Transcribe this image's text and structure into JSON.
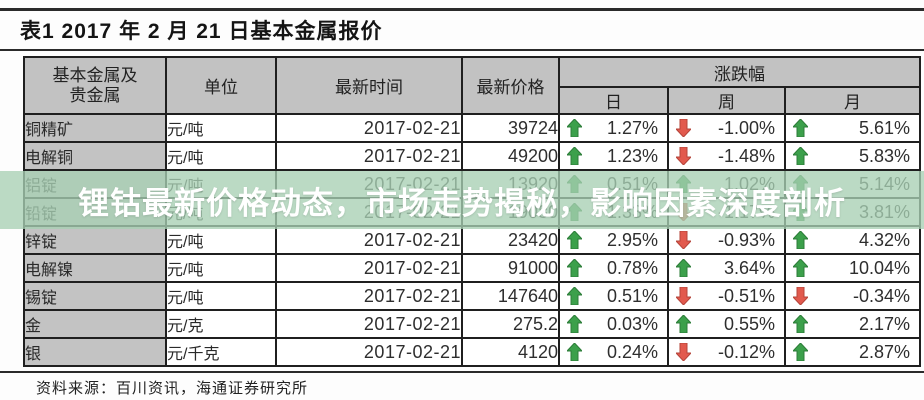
{
  "page": {
    "title": "表1  2017 年 2 月 21 日基本金属报价",
    "source_note": "资料来源：百川资讯，海通证券研究所",
    "overlay_text": "锂钴最新价格动态，市场走势揭秘，影响因素深度剖析"
  },
  "table": {
    "headers": {
      "metal_line1": "基本金属及",
      "metal_line2": "贵金属",
      "unit": "单位",
      "time": "最新时间",
      "price": "最新价格",
      "change_group": "涨跌幅",
      "day": "日",
      "week": "周",
      "month": "月"
    },
    "rows": [
      {
        "metal": "铜精矿",
        "unit": "元/吨",
        "time": "2017-02-21",
        "price": "39724",
        "day": {
          "dir": "up",
          "val": "1.27%"
        },
        "week": {
          "dir": "down",
          "val": "-1.00%"
        },
        "month": {
          "dir": "up",
          "val": "5.61%"
        }
      },
      {
        "metal": "电解铜",
        "unit": "元/吨",
        "time": "2017-02-21",
        "price": "49200",
        "day": {
          "dir": "up",
          "val": "1.23%"
        },
        "week": {
          "dir": "down",
          "val": "-1.48%"
        },
        "month": {
          "dir": "up",
          "val": "5.83%"
        }
      },
      {
        "metal": "铝锭",
        "unit": "元/吨",
        "time": "2017-02-21",
        "price": "13920",
        "day": {
          "dir": "up",
          "val": "0.51%"
        },
        "week": {
          "dir": "up",
          "val": "1.02%"
        },
        "month": {
          "dir": "up",
          "val": "5.14%"
        }
      },
      {
        "metal": "铅锭",
        "unit": "元/吨",
        "time": "2017-02-21",
        "price": "19080",
        "day": {
          "dir": "up",
          "val": "1.33%"
        },
        "week": {
          "dir": "down",
          "val": "-1.17%"
        },
        "month": {
          "dir": "up",
          "val": "3.81%"
        }
      },
      {
        "metal": "锌锭",
        "unit": "元/吨",
        "time": "2017-02-21",
        "price": "23420",
        "day": {
          "dir": "up",
          "val": "2.95%"
        },
        "week": {
          "dir": "down",
          "val": "-0.93%"
        },
        "month": {
          "dir": "up",
          "val": "4.32%"
        }
      },
      {
        "metal": "电解镍",
        "unit": "元/吨",
        "time": "2017-02-21",
        "price": "91000",
        "day": {
          "dir": "up",
          "val": "0.78%"
        },
        "week": {
          "dir": "up",
          "val": "3.64%"
        },
        "month": {
          "dir": "up",
          "val": "10.04%"
        }
      },
      {
        "metal": "锡锭",
        "unit": "元/吨",
        "time": "2017-02-21",
        "price": "147640",
        "day": {
          "dir": "up",
          "val": "0.51%"
        },
        "week": {
          "dir": "down",
          "val": "-0.51%"
        },
        "month": {
          "dir": "down",
          "val": "-0.34%"
        }
      },
      {
        "metal": "金",
        "unit": "元/克",
        "time": "2017-02-21",
        "price": "275.2",
        "day": {
          "dir": "up",
          "val": "0.03%"
        },
        "week": {
          "dir": "up",
          "val": "0.55%"
        },
        "month": {
          "dir": "up",
          "val": "2.17%"
        }
      },
      {
        "metal": "银",
        "unit": "元/千克",
        "time": "2017-02-21",
        "price": "4120",
        "day": {
          "dir": "up",
          "val": "0.24%"
        },
        "week": {
          "dir": "down",
          "val": "-0.12%"
        },
        "month": {
          "dir": "up",
          "val": "2.87%"
        }
      }
    ]
  },
  "icons": {
    "up": "up-arrow-icon",
    "down": "down-arrow-icon"
  },
  "colors": {
    "up_arrow": "#3ca04b",
    "up_arrow_edge": "#2c7c38",
    "down_arrow": "#e25a4e",
    "down_arrow_edge": "#b5443a",
    "header_bg": "#c2c2c2",
    "row_label_bg": "#c3c3c3",
    "overlay_band": "#a8cfb4",
    "overlay_opacity": 0.78,
    "overlay_text": "#ffffff"
  }
}
